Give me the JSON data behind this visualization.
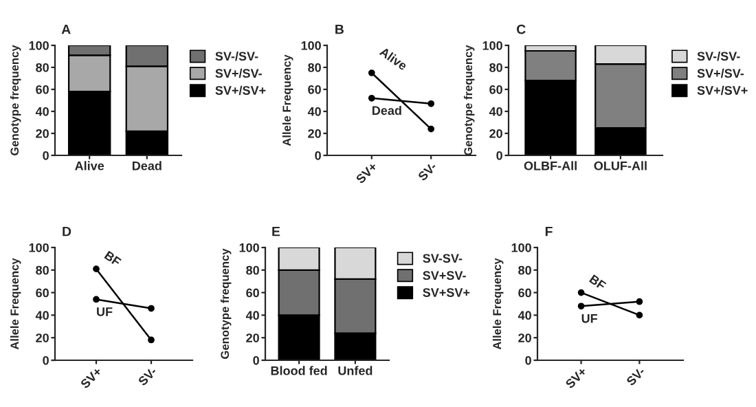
{
  "chart_data": [
    {
      "type": "bar",
      "title": "A",
      "ylabel": "Genotype frequency",
      "categories": [
        "Alive",
        "Dead"
      ],
      "stacked": true,
      "ylim": [
        0,
        100
      ],
      "yticks": [
        0,
        20,
        40,
        60,
        80,
        100
      ],
      "grid": false,
      "legend": "right",
      "series": [
        {
          "name": "SV+/SV+",
          "color": "#000000",
          "values": [
            58,
            22
          ]
        },
        {
          "name": "SV+/SV-",
          "color": "#a8a8a8",
          "values": [
            33,
            59
          ]
        },
        {
          "name": "SV-/SV-",
          "color": "#707070",
          "values": [
            9,
            19
          ]
        }
      ]
    },
    {
      "type": "line",
      "title": "B",
      "ylabel": "Allele Frequency",
      "categories": [
        "SV+",
        "SV-"
      ],
      "ylim": [
        0,
        100
      ],
      "yticks": [
        0,
        20,
        40,
        60,
        80,
        100
      ],
      "grid": false,
      "legend": false,
      "marker": "circle",
      "line_style": "solid",
      "series": [
        {
          "name": "Alive",
          "color": "#000000",
          "values": [
            75,
            24
          ]
        },
        {
          "name": "Dead",
          "color": "#000000",
          "values": [
            52,
            47
          ]
        }
      ]
    },
    {
      "type": "bar",
      "title": "C",
      "ylabel": "Genotype frequency",
      "categories": [
        "OLBF-All",
        "OLUF-All"
      ],
      "stacked": true,
      "ylim": [
        0,
        100
      ],
      "yticks": [
        0,
        20,
        40,
        60,
        80,
        100
      ],
      "grid": false,
      "legend": "right",
      "series": [
        {
          "name": "SV+/SV+",
          "color": "#000000",
          "values": [
            68,
            25
          ]
        },
        {
          "name": "SV+/SV-",
          "color": "#808080",
          "values": [
            27,
            58
          ]
        },
        {
          "name": "SV-/SV-",
          "color": "#d8d8d8",
          "values": [
            5,
            17
          ]
        }
      ]
    },
    {
      "type": "line",
      "title": "D",
      "ylabel": "Allele Frequency",
      "categories": [
        "SV+",
        "SV-"
      ],
      "ylim": [
        0,
        100
      ],
      "yticks": [
        0,
        20,
        40,
        60,
        80,
        100
      ],
      "grid": false,
      "legend": false,
      "marker": "circle",
      "line_style": "solid",
      "series": [
        {
          "name": "BF",
          "color": "#000000",
          "values": [
            81,
            18
          ]
        },
        {
          "name": "UF",
          "color": "#000000",
          "values": [
            54,
            46
          ]
        }
      ]
    },
    {
      "type": "bar",
      "title": "E",
      "ylabel": "Genotype frequency",
      "categories": [
        "Blood fed",
        "Unfed"
      ],
      "stacked": true,
      "ylim": [
        0,
        100
      ],
      "yticks": [
        0,
        20,
        40,
        60,
        80,
        100
      ],
      "grid": false,
      "legend": "right",
      "series": [
        {
          "name": "SV+SV+",
          "color": "#000000",
          "values": [
            40,
            24
          ]
        },
        {
          "name": "SV+SV-",
          "color": "#707070",
          "values": [
            40,
            48
          ]
        },
        {
          "name": "SV-SV-",
          "color": "#d8d8d8",
          "values": [
            20,
            28
          ]
        }
      ]
    },
    {
      "type": "line",
      "title": "F",
      "ylabel": "Allele Frequency",
      "categories": [
        "SV+",
        "SV-"
      ],
      "ylim": [
        0,
        100
      ],
      "yticks": [
        0,
        20,
        40,
        60,
        80,
        100
      ],
      "grid": false,
      "legend": false,
      "marker": "circle",
      "line_style": "solid",
      "series": [
        {
          "name": "BF",
          "color": "#000000",
          "values": [
            60,
            40
          ]
        },
        {
          "name": "UF",
          "color": "#000000",
          "values": [
            48,
            52
          ]
        }
      ]
    }
  ]
}
